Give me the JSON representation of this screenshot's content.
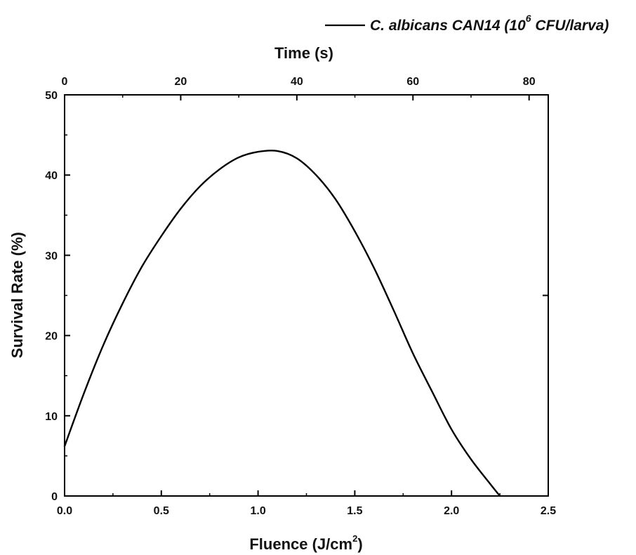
{
  "chart_data": {
    "type": "line",
    "title": "",
    "xlabel": {
      "prefix": "Fluence (J/cm",
      "sup": "2",
      "suffix": ")"
    },
    "x2label": "Time (s)",
    "ylabel": "Survival Rate (%)",
    "xlim": [
      0,
      2.5
    ],
    "x2lim": [
      0,
      83.3
    ],
    "ylim": [
      0,
      50
    ],
    "xticks": [
      "0.0",
      "0.5",
      "1.0",
      "1.5",
      "2.0",
      "2.5"
    ],
    "xtick_values": [
      0,
      0.5,
      1.0,
      1.5,
      2.0,
      2.5
    ],
    "x2ticks": [
      "0",
      "20",
      "40",
      "60",
      "80"
    ],
    "x2tick_values": [
      0,
      20,
      40,
      60,
      80
    ],
    "yticks": [
      "0",
      "10",
      "20",
      "30",
      "40",
      "50"
    ],
    "ytick_values": [
      0,
      10,
      20,
      30,
      40,
      50
    ],
    "grid": false,
    "legend_position": "top-right",
    "series": [
      {
        "name": {
          "prefix": "C. albicans CAN14 (10",
          "sup": "6",
          "suffix": " CFU/larva)"
        },
        "color": "#000000",
        "x": [
          0.0,
          0.1,
          0.2,
          0.3,
          0.4,
          0.5,
          0.6,
          0.7,
          0.8,
          0.9,
          1.0,
          1.1,
          1.2,
          1.3,
          1.4,
          1.5,
          1.6,
          1.7,
          1.8,
          1.9,
          2.0,
          2.1,
          2.2,
          2.25
        ],
        "y": [
          6.2,
          12.8,
          18.8,
          24.0,
          28.6,
          32.4,
          35.8,
          38.6,
          40.7,
          42.2,
          42.9,
          43.0,
          42.1,
          40.0,
          37.0,
          33.0,
          28.4,
          23.2,
          17.8,
          13.0,
          8.3,
          4.6,
          1.5,
          0.0
        ]
      }
    ]
  }
}
